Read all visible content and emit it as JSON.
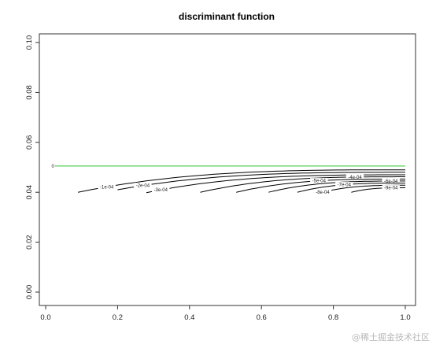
{
  "chart_data": {
    "type": "contour",
    "title": "discriminant function",
    "xlabel": "",
    "ylabel": "",
    "xlim": [
      0.0,
      1.0
    ],
    "ylim": [
      -0.005,
      0.105
    ],
    "x_ticks": [
      0.0,
      0.2,
      0.4,
      0.6,
      0.8,
      1.0
    ],
    "x_tick_labels": [
      "0.0",
      "0.2",
      "0.4",
      "0.6",
      "0.8",
      "1.0"
    ],
    "y_ticks": [
      0.0,
      0.02,
      0.04,
      0.06,
      0.08,
      0.1
    ],
    "y_tick_labels": [
      "0.00",
      "0.02",
      "0.04",
      "0.06",
      "0.08",
      "0.10"
    ],
    "grid": false,
    "colors": {
      "zero_level": "#2bc02b",
      "other_levels": "#000000",
      "axes": "#333333"
    },
    "levels": [
      {
        "label": "0",
        "color": "#2bc02b",
        "x_start": 0.02,
        "y_start": 0.0505,
        "y_end": 0.0505,
        "label_x": 0.02
      },
      {
        "label": "-1e-04",
        "color": "#000000",
        "x_start": 0.09,
        "y_start": 0.04,
        "y_end": 0.049,
        "label_x": 0.17
      },
      {
        "label": "-2e-04",
        "color": "#000000",
        "x_start": 0.2,
        "y_start": 0.041,
        "y_end": 0.048,
        "label_x": 0.27
      },
      {
        "label": "-3e-04",
        "color": "#000000",
        "x_start": 0.28,
        "y_start": 0.0398,
        "y_end": 0.047,
        "label_x": 0.32
      },
      {
        "label": "-4e-04",
        "color": "#000000",
        "x_start": 0.43,
        "y_start": 0.04,
        "y_end": 0.0462,
        "label_x": 0.86
      },
      {
        "label": "-5e-04",
        "color": "#000000",
        "x_start": 0.53,
        "y_start": 0.04,
        "y_end": 0.0453,
        "label_x": 0.76
      },
      {
        "label": "-6e-04",
        "color": "#000000",
        "x_start": 0.62,
        "y_start": 0.04,
        "y_end": 0.0445,
        "label_x": 0.96
      },
      {
        "label": "-7e-04",
        "color": "#000000",
        "x_start": 0.7,
        "y_start": 0.04,
        "y_end": 0.0437,
        "label_x": 0.83
      },
      {
        "label": "-8e-04",
        "color": "#000000",
        "x_start": 0.77,
        "y_start": 0.04,
        "y_end": 0.0428,
        "label_x": 0.77
      },
      {
        "label": "-9e-04",
        "color": "#000000",
        "x_start": 0.85,
        "y_start": 0.04,
        "y_end": 0.0418,
        "label_x": 0.96
      }
    ]
  },
  "watermark": "@稀土掘金技术社区"
}
